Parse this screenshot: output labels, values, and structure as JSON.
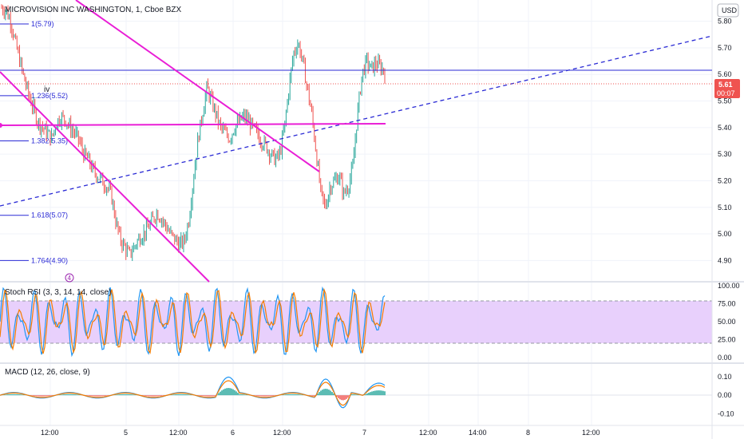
{
  "header": {
    "symbol_title": "MICROVISION INC WASHINGTON, 1, Cboe BZX",
    "currency_button": "USD"
  },
  "colors": {
    "up": "#26a69a",
    "down": "#ef5350",
    "trendline": "#e91ed6",
    "fib_line": "#2a2ad5",
    "dashed_trend": "#2a2ad5",
    "price_badge": "#ef5350",
    "rsi_k": "#2196f3",
    "rsi_d": "#f57c00",
    "rsi_band": "#e4c8fb",
    "macd_line": "#2196f3",
    "signal_line": "#f57c00"
  },
  "chart_data": [
    {
      "type": "line",
      "subtype": "candlestick",
      "pane": "price",
      "title": "MICROVISION INC WASHINGTON, 1, Cboe BZX",
      "ylim": [
        4.82,
        5.88
      ],
      "y_ticks": [
        "5.80",
        "5.70",
        "5.60",
        "5.50",
        "5.40",
        "5.30",
        "5.20",
        "5.10",
        "5.00",
        "4.90"
      ],
      "x_ticks": [
        "12:00",
        "5",
        "12:00",
        "6",
        "12:00",
        "7",
        "12:00",
        "14:00",
        "8",
        "12:00"
      ],
      "current_price": "5.61",
      "countdown": "00:07",
      "annotation_markers": [
        "iv",
        "4"
      ],
      "close_path": [
        5.85,
        5.84,
        5.8,
        5.72,
        5.65,
        5.58,
        5.52,
        5.47,
        5.42,
        5.4,
        5.38,
        5.36,
        5.42,
        5.44,
        5.43,
        5.4,
        5.38,
        5.35,
        5.3,
        5.28,
        5.24,
        5.22,
        5.2,
        5.18,
        5.15,
        5.05,
        4.98,
        4.95,
        4.92,
        4.95,
        4.98,
        5.0,
        5.02,
        5.05,
        5.08,
        5.06,
        5.03,
        5.0,
        4.98,
        4.96,
        4.97,
        5.05,
        5.2,
        5.35,
        5.45,
        5.55,
        5.5,
        5.45,
        5.4,
        5.38,
        5.36,
        5.4,
        5.42,
        5.44,
        5.43,
        5.4,
        5.38,
        5.35,
        5.33,
        5.3,
        5.28,
        5.3,
        5.4,
        5.55,
        5.68,
        5.72,
        5.65,
        5.55,
        5.45,
        5.3,
        5.15,
        5.1,
        5.18,
        5.2,
        5.22,
        5.15,
        5.18,
        5.25,
        5.45,
        5.6,
        5.65,
        5.62,
        5.64,
        5.63,
        5.61
      ],
      "fib_levels": [
        {
          "label": "1(5.79)",
          "value": 5.79
        },
        {
          "label": "1.236(5.52)",
          "value": 5.52
        },
        {
          "label": "1.382(5.35)",
          "value": 5.35
        },
        {
          "label": "1.618(5.07)",
          "value": 5.07
        },
        {
          "label": "1.764(4.90)",
          "value": 4.9
        }
      ]
    },
    {
      "type": "line",
      "pane": "stoch_rsi",
      "title": "Stoch RSI (3, 3, 14, 14, close)",
      "ylim": [
        0,
        100
      ],
      "y_ticks": [
        "100.00",
        "75.00",
        "50.00",
        "25.00",
        "0.00"
      ],
      "bands": [
        20,
        80
      ],
      "series": []
    },
    {
      "type": "line",
      "pane": "macd",
      "title": "MACD (12, 26, close, 9)",
      "ylim": [
        -0.12,
        0.13
      ],
      "y_ticks": [
        "0.10",
        "0.00",
        "-0.10"
      ],
      "series": []
    }
  ]
}
